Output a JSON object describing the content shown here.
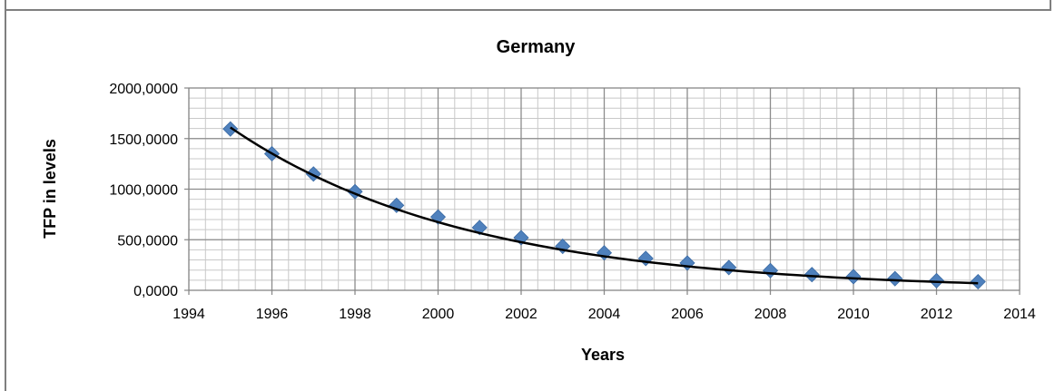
{
  "chart_data": {
    "type": "scatter",
    "title": "Germany",
    "xlabel": "Years",
    "ylabel": "TFP in  levels",
    "xlim": [
      1994,
      2014
    ],
    "ylim": [
      0,
      2000
    ],
    "x_ticks": [
      1994,
      1996,
      1998,
      2000,
      2002,
      2004,
      2006,
      2008,
      2010,
      2012,
      2014
    ],
    "x_tick_labels": [
      "1994",
      "1996",
      "1998",
      "2000",
      "2002",
      "2004",
      "2006",
      "2008",
      "2010",
      "2012",
      "2014"
    ],
    "y_ticks": [
      0,
      500,
      1000,
      1500,
      2000
    ],
    "y_tick_labels": [
      "0,0000",
      "500,0000",
      "1000,0000",
      "1500,0000",
      "2000,0000"
    ],
    "grid": true,
    "legend": "none",
    "series": [
      {
        "marker": "diamond",
        "color": "#4f81bd",
        "x": [
          1995,
          1996,
          1997,
          1998,
          1999,
          2000,
          2001,
          2002,
          2003,
          2004,
          2005,
          2006,
          2007,
          2008,
          2009,
          2010,
          2011,
          2012,
          2013
        ],
        "y": [
          1595,
          1350,
          1150,
          975,
          840,
          725,
          620,
          520,
          435,
          370,
          315,
          270,
          225,
          195,
          155,
          135,
          115,
          95,
          85
        ]
      }
    ],
    "trendline": {
      "type": "exponential",
      "color": "#000000",
      "x": [
        1995,
        2013
      ],
      "y": [
        1610,
        70
      ]
    }
  }
}
